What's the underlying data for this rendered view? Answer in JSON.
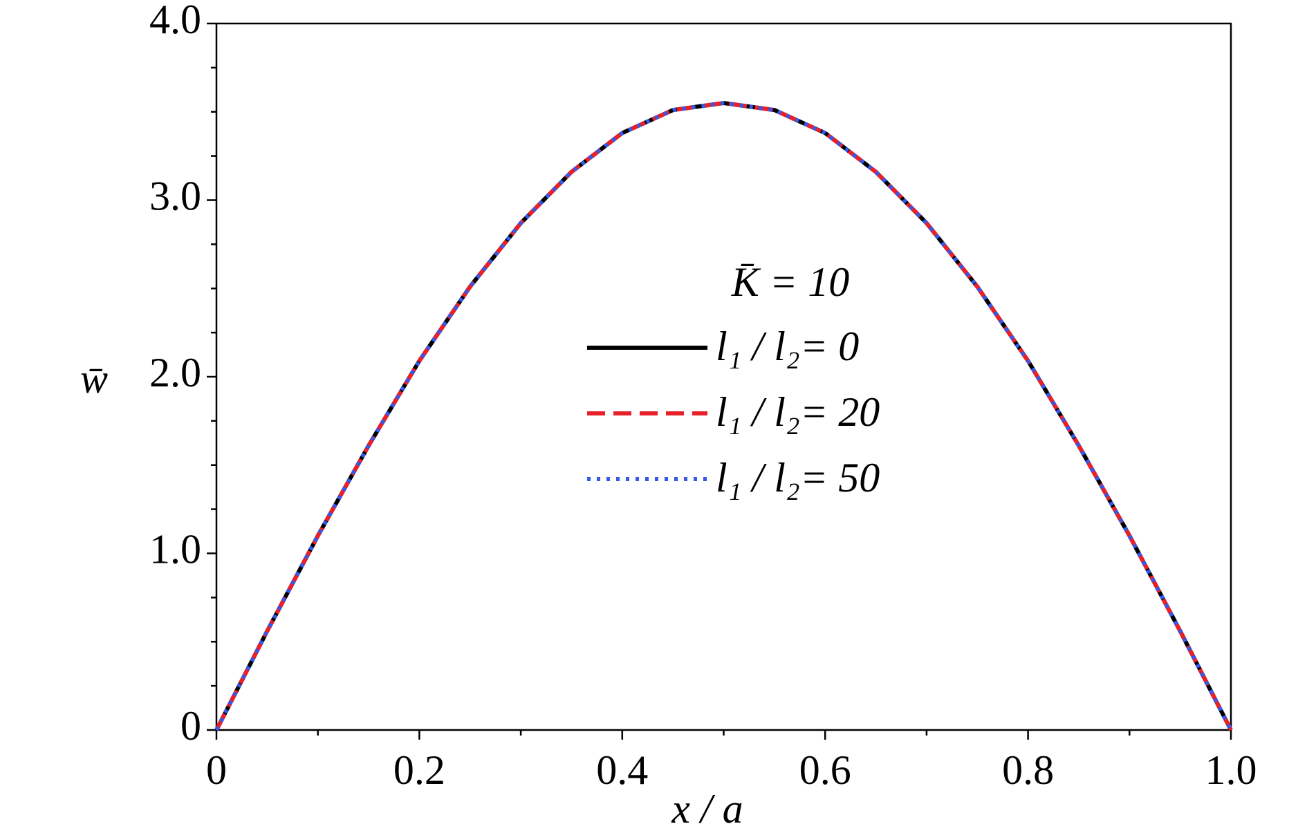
{
  "chart_data": {
    "type": "line",
    "xlabel": "x / a",
    "ylabel": "w̄",
    "annotation": "K̄ = 10",
    "x": [
      0,
      0.05,
      0.1,
      0.15,
      0.2,
      0.25,
      0.3,
      0.35,
      0.4,
      0.45,
      0.5,
      0.55,
      0.6,
      0.65,
      0.7,
      0.75,
      0.8,
      0.85,
      0.9,
      0.95,
      1.0
    ],
    "series": [
      {
        "name": "l₁ / l₂= 0",
        "color": "#000000",
        "line_style": "solid",
        "values": [
          0,
          0.56,
          1.1,
          1.61,
          2.09,
          2.51,
          2.87,
          3.16,
          3.38,
          3.51,
          3.55,
          3.51,
          3.38,
          3.16,
          2.87,
          2.51,
          2.09,
          1.61,
          1.1,
          0.56,
          0
        ]
      },
      {
        "name": "l₁ / l₂= 20",
        "color": "#e8202a",
        "line_style": "dashed",
        "values": [
          0,
          0.56,
          1.1,
          1.61,
          2.09,
          2.51,
          2.87,
          3.16,
          3.38,
          3.51,
          3.55,
          3.51,
          3.38,
          3.16,
          2.87,
          2.51,
          2.09,
          1.61,
          1.1,
          0.56,
          0
        ]
      },
      {
        "name": "l₁ / l₂= 50",
        "color": "#3458e8",
        "line_style": "dotted",
        "values": [
          0,
          0.56,
          1.1,
          1.61,
          2.09,
          2.51,
          2.87,
          3.16,
          3.38,
          3.51,
          3.55,
          3.51,
          3.38,
          3.16,
          2.87,
          2.51,
          2.09,
          1.61,
          1.1,
          0.56,
          0
        ]
      }
    ],
    "xlim": [
      0,
      1.0
    ],
    "ylim": [
      0,
      4.0
    ],
    "xticks": [
      0,
      0.2,
      0.4,
      0.6,
      0.8,
      {
        "value": 1.0,
        "label": "1.0"
      }
    ],
    "yticks": [
      0,
      {
        "value": 1.0,
        "label": "1.0"
      },
      {
        "value": 2.0,
        "label": "2.0"
      },
      {
        "value": 3.0,
        "label": "3.0"
      },
      {
        "value": 4.0,
        "label": "4.0"
      }
    ],
    "xminorticks": [
      0.1,
      0.3,
      0.5,
      0.7,
      0.9
    ],
    "yminorticks": [
      0.25,
      0.5,
      0.75,
      1.25,
      1.5,
      1.75,
      2.25,
      2.5,
      2.75,
      3.25,
      3.5,
      3.75
    ],
    "grid": false
  }
}
